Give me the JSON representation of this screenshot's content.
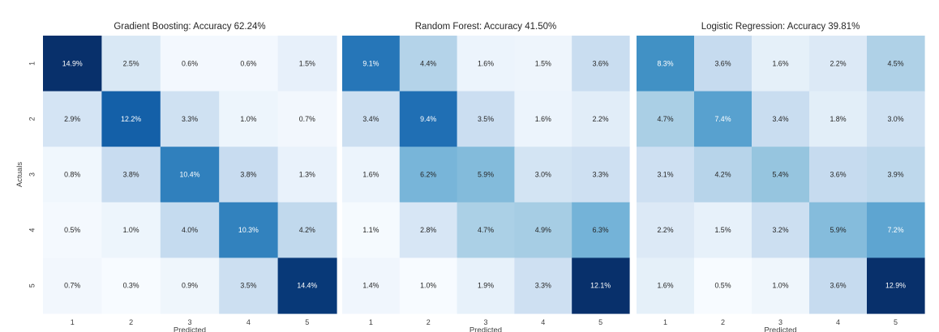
{
  "chart_data": [
    {
      "type": "heatmap",
      "title": "Gradient Boosting: Accuracy 62.24%",
      "xlabel": "Predicted",
      "ylabel": "Actuals",
      "x_categories": [
        "1",
        "2",
        "3",
        "4",
        "5"
      ],
      "y_categories": [
        "1",
        "2",
        "3",
        "4",
        "5"
      ],
      "values": [
        [
          14.9,
          2.5,
          0.6,
          0.6,
          1.5
        ],
        [
          2.9,
          12.2,
          3.3,
          1.0,
          0.7
        ],
        [
          0.8,
          3.8,
          10.4,
          3.8,
          1.3
        ],
        [
          0.5,
          1.0,
          4.0,
          10.3,
          4.2
        ],
        [
          0.7,
          0.3,
          0.9,
          3.5,
          14.4
        ]
      ],
      "labels": [
        [
          "14.9%",
          "2.5%",
          "0.6%",
          "0.6%",
          "1.5%"
        ],
        [
          "2.9%",
          "12.2%",
          "3.3%",
          "1.0%",
          "0.7%"
        ],
        [
          "0.8%",
          "3.8%",
          "10.4%",
          "3.8%",
          "1.3%"
        ],
        [
          "0.5%",
          "1.0%",
          "4.0%",
          "10.3%",
          "4.2%"
        ],
        [
          "0.7%",
          "0.3%",
          "0.9%",
          "3.5%",
          "14.4%"
        ]
      ],
      "colormap": "Blues",
      "colorbar": false
    },
    {
      "type": "heatmap",
      "title": "Random Forest: Accuracy 41.50%",
      "xlabel": "Predicted",
      "ylabel": "",
      "x_categories": [
        "1",
        "2",
        "3",
        "4",
        "5"
      ],
      "y_categories": [
        "1",
        "2",
        "3",
        "4",
        "5"
      ],
      "values": [
        [
          9.1,
          4.4,
          1.6,
          1.5,
          3.6
        ],
        [
          3.4,
          9.4,
          3.5,
          1.6,
          2.2
        ],
        [
          1.6,
          6.2,
          5.9,
          3.0,
          3.3
        ],
        [
          1.1,
          2.8,
          4.7,
          4.9,
          6.3
        ],
        [
          1.4,
          1.0,
          1.9,
          3.3,
          12.1
        ]
      ],
      "labels": [
        [
          "9.1%",
          "4.4%",
          "1.6%",
          "1.5%",
          "3.6%"
        ],
        [
          "3.4%",
          "9.4%",
          "3.5%",
          "1.6%",
          "2.2%"
        ],
        [
          "1.6%",
          "6.2%",
          "5.9%",
          "3.0%",
          "3.3%"
        ],
        [
          "1.1%",
          "2.8%",
          "4.7%",
          "4.9%",
          "6.3%"
        ],
        [
          "1.4%",
          "1.0%",
          "1.9%",
          "3.3%",
          "12.1%"
        ]
      ],
      "colormap": "Blues",
      "colorbar": false
    },
    {
      "type": "heatmap",
      "title": "Logistic Regression: Accuracy 39.81%",
      "xlabel": "Predicted",
      "ylabel": "",
      "x_categories": [
        "1",
        "2",
        "3",
        "4",
        "5"
      ],
      "y_categories": [
        "1",
        "2",
        "3",
        "4",
        "5"
      ],
      "values": [
        [
          8.3,
          3.6,
          1.6,
          2.2,
          4.5
        ],
        [
          4.7,
          7.4,
          3.4,
          1.8,
          3.0
        ],
        [
          3.1,
          4.2,
          5.4,
          3.6,
          3.9
        ],
        [
          2.2,
          1.5,
          3.2,
          5.9,
          7.2
        ],
        [
          1.6,
          0.5,
          1.0,
          3.6,
          12.9
        ]
      ],
      "labels": [
        [
          "8.3%",
          "3.6%",
          "1.6%",
          "2.2%",
          "4.5%"
        ],
        [
          "4.7%",
          "7.4%",
          "3.4%",
          "1.8%",
          "3.0%"
        ],
        [
          "3.1%",
          "4.2%",
          "5.4%",
          "3.6%",
          "3.9%"
        ],
        [
          "2.2%",
          "1.5%",
          "3.2%",
          "5.9%",
          "7.2%"
        ],
        [
          "1.6%",
          "0.5%",
          "1.0%",
          "3.6%",
          "12.9%"
        ]
      ],
      "colormap": "Blues",
      "colorbar": false
    }
  ]
}
